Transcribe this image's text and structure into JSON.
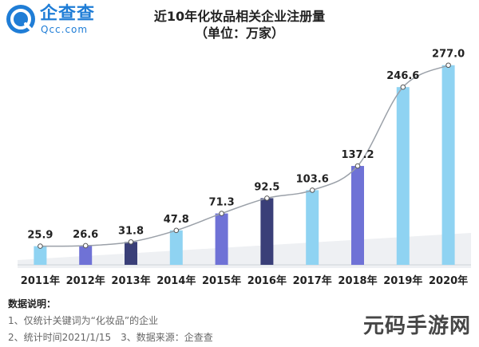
{
  "brand": {
    "name_cn": "企查查",
    "name_en": "Qcc.com",
    "color": "#1f7dd6"
  },
  "chart_data": {
    "type": "bar",
    "title": "近10年化妆品相关企业注册量",
    "subtitle": "（单位：万家）",
    "categories": [
      "2011年",
      "2012年",
      "2013年",
      "2014年",
      "2015年",
      "2016年",
      "2017年",
      "2018年",
      "2019年",
      "2020年"
    ],
    "values": [
      25.9,
      26.6,
      31.8,
      47.8,
      71.3,
      92.5,
      103.6,
      137.2,
      246.6,
      277.0
    ],
    "value_labels": [
      "25.9",
      "26.6",
      "31.8",
      "47.8",
      "71.3",
      "92.5",
      "103.6",
      "137.2",
      "246.6",
      "277.0"
    ],
    "bar_colors": [
      "#8fd3f2",
      "#6f72d6",
      "#3a3f78",
      "#8fd3f2",
      "#6f72d6",
      "#3a3f78",
      "#8fd3f2",
      "#6f72d6",
      "#8fd3f2",
      "#8fd3f2"
    ],
    "trend_line": true,
    "ylim": [
      0,
      290
    ],
    "grid": false,
    "legend": "none"
  },
  "notes": {
    "header": "数据说明：",
    "lines": [
      "1、仅统计关键词为“化妆品”的企业",
      "2、统计时间2021/1/15　3、数据来源：企查查"
    ]
  },
  "watermark": "元码手游网"
}
